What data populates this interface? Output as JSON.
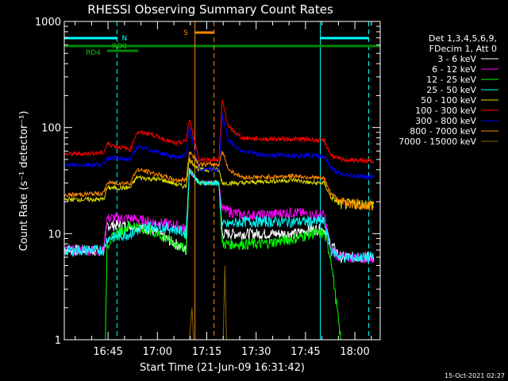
{
  "chart_data": {
    "type": "line",
    "title": "RHESSI Observing Summary Count Rates",
    "xlabel": "Start Time (21-Jun-09 16:31:42)",
    "ylabel": "Count Rate (s⁻¹ detector⁻¹)",
    "yscale": "log",
    "xlim_minutes": [
      0,
      96
    ],
    "ylim": [
      1,
      1000
    ],
    "x_ticks": [
      {
        "minute": 13.3,
        "label": "16:45"
      },
      {
        "minute": 28.3,
        "label": "17:00"
      },
      {
        "minute": 43.3,
        "label": "17:15"
      },
      {
        "minute": 58.3,
        "label": "17:30"
      },
      {
        "minute": 73.3,
        "label": "17:45"
      },
      {
        "minute": 88.3,
        "label": "18:00"
      }
    ],
    "y_ticks": [
      {
        "value": 1,
        "label": "1"
      },
      {
        "value": 10,
        "label": "10"
      },
      {
        "value": 100,
        "label": "100"
      },
      {
        "value": 1000,
        "label": "1000"
      }
    ],
    "legend": {
      "placement": "right",
      "header": [
        "Det 1,3,4,5,6,9,",
        "FDecim 1, Att 0"
      ]
    },
    "series": [
      {
        "name": "3 - 6 keV",
        "color": "#ffffff",
        "points": [
          [
            0,
            7
          ],
          [
            12,
            7
          ],
          [
            13,
            12
          ],
          [
            20,
            12
          ],
          [
            26,
            11
          ],
          [
            34,
            8
          ],
          [
            37,
            7
          ],
          [
            38,
            40
          ],
          [
            41,
            30
          ],
          [
            47,
            30
          ],
          [
            48,
            10
          ],
          [
            54,
            10
          ],
          [
            60,
            10
          ],
          [
            70,
            10
          ],
          [
            75,
            11
          ],
          [
            79,
            11
          ],
          [
            81,
            8
          ],
          [
            84,
            6
          ],
          [
            94,
            6
          ]
        ]
      },
      {
        "name": "6 - 12 keV",
        "color": "#ff00ff",
        "points": [
          [
            0,
            7
          ],
          [
            12,
            7
          ],
          [
            13,
            14
          ],
          [
            20,
            14
          ],
          [
            26,
            13
          ],
          [
            34,
            12
          ],
          [
            37,
            11
          ],
          [
            38,
            40
          ],
          [
            41,
            30
          ],
          [
            47,
            30
          ],
          [
            48,
            17
          ],
          [
            54,
            15
          ],
          [
            60,
            15
          ],
          [
            70,
            16
          ],
          [
            75,
            15
          ],
          [
            79,
            15
          ],
          [
            81,
            7
          ],
          [
            84,
            6
          ],
          [
            94,
            6
          ]
        ]
      },
      {
        "name": "12 - 25 keV",
        "color": "#00ff00",
        "points": [
          [
            12,
            1
          ],
          [
            12.5,
            1
          ],
          [
            13,
            8
          ],
          [
            16,
            10
          ],
          [
            20,
            12
          ],
          [
            26,
            11
          ],
          [
            34,
            8
          ],
          [
            37,
            7
          ],
          [
            38,
            40
          ],
          [
            41,
            30
          ],
          [
            47,
            30
          ],
          [
            48,
            8
          ],
          [
            54,
            8
          ],
          [
            60,
            8
          ],
          [
            70,
            9
          ],
          [
            75,
            10
          ],
          [
            79,
            10
          ],
          [
            81,
            6
          ],
          [
            84,
            1
          ],
          [
            94,
            1
          ]
        ]
      },
      {
        "name": "25 - 50 keV",
        "color": "#00ffff",
        "points": [
          [
            0,
            7
          ],
          [
            12,
            7
          ],
          [
            13,
            9
          ],
          [
            20,
            10
          ],
          [
            26,
            12
          ],
          [
            34,
            11
          ],
          [
            37,
            10
          ],
          [
            38,
            40
          ],
          [
            41,
            30
          ],
          [
            47,
            30
          ],
          [
            48,
            12
          ],
          [
            54,
            13
          ],
          [
            60,
            13
          ],
          [
            70,
            13
          ],
          [
            75,
            13
          ],
          [
            79,
            13
          ],
          [
            81,
            7
          ],
          [
            84,
            6
          ],
          [
            94,
            6
          ]
        ]
      },
      {
        "name": "50 - 100 keV",
        "color": "#dddd00",
        "points": [
          [
            0,
            21
          ],
          [
            12,
            21
          ],
          [
            13,
            27
          ],
          [
            20,
            27
          ],
          [
            22,
            34
          ],
          [
            30,
            32
          ],
          [
            36,
            28
          ],
          [
            37,
            28
          ],
          [
            38,
            50
          ],
          [
            41,
            40
          ],
          [
            47,
            40
          ],
          [
            48,
            30
          ],
          [
            54,
            30
          ],
          [
            60,
            31
          ],
          [
            70,
            32
          ],
          [
            75,
            30
          ],
          [
            79,
            30
          ],
          [
            81,
            22
          ],
          [
            84,
            19
          ],
          [
            94,
            19
          ]
        ]
      },
      {
        "name": "100 - 300 keV",
        "color": "#ff0000",
        "points": [
          [
            0,
            56
          ],
          [
            12,
            58
          ],
          [
            13,
            70
          ],
          [
            20,
            62
          ],
          [
            22,
            90
          ],
          [
            26,
            88
          ],
          [
            34,
            70
          ],
          [
            37,
            75
          ],
          [
            38,
            120
          ],
          [
            41,
            50
          ],
          [
            47,
            50
          ],
          [
            48,
            180
          ],
          [
            50,
            100
          ],
          [
            54,
            80
          ],
          [
            60,
            78
          ],
          [
            70,
            78
          ],
          [
            75,
            77
          ],
          [
            79,
            75
          ],
          [
            81,
            55
          ],
          [
            84,
            50
          ],
          [
            94,
            48
          ]
        ]
      },
      {
        "name": "300 - 800 keV",
        "color": "#0000ff",
        "points": [
          [
            0,
            44
          ],
          [
            12,
            45
          ],
          [
            13,
            52
          ],
          [
            20,
            50
          ],
          [
            22,
            65
          ],
          [
            26,
            62
          ],
          [
            34,
            52
          ],
          [
            37,
            55
          ],
          [
            38,
            100
          ],
          [
            41,
            40
          ],
          [
            47,
            40
          ],
          [
            48,
            130
          ],
          [
            50,
            75
          ],
          [
            54,
            60
          ],
          [
            60,
            55
          ],
          [
            70,
            55
          ],
          [
            75,
            55
          ],
          [
            79,
            53
          ],
          [
            81,
            42
          ],
          [
            84,
            36
          ],
          [
            94,
            34
          ]
        ]
      },
      {
        "name": "800 - 7000 keV",
        "color": "#ff8800",
        "points": [
          [
            0,
            23
          ],
          [
            12,
            24
          ],
          [
            13,
            30
          ],
          [
            20,
            30
          ],
          [
            22,
            40
          ],
          [
            26,
            38
          ],
          [
            34,
            32
          ],
          [
            37,
            32
          ],
          [
            38,
            60
          ],
          [
            41,
            45
          ],
          [
            47,
            45
          ],
          [
            48,
            60
          ],
          [
            50,
            40
          ],
          [
            54,
            34
          ],
          [
            60,
            34
          ],
          [
            70,
            35
          ],
          [
            75,
            34
          ],
          [
            79,
            33
          ],
          [
            81,
            24
          ],
          [
            84,
            20
          ],
          [
            94,
            18
          ]
        ]
      },
      {
        "name": "7000 - 15000 keV",
        "color": "#886600",
        "points": [
          [
            0,
            1
          ],
          [
            38,
            1
          ],
          [
            38.8,
            2
          ],
          [
            39.3,
            1
          ],
          [
            48.3,
            1
          ],
          [
            48.8,
            5
          ],
          [
            49.3,
            1
          ],
          [
            94,
            1
          ]
        ]
      }
    ],
    "annotations": [
      {
        "label": "N",
        "color": "#00ffff"
      },
      {
        "label": "RD0",
        "color": "#008800"
      },
      {
        "label": "RD4",
        "color": "#008800"
      },
      {
        "label": "S",
        "color": "#ff8800"
      }
    ]
  },
  "timestamp": "15-Oct-2021 02:27"
}
